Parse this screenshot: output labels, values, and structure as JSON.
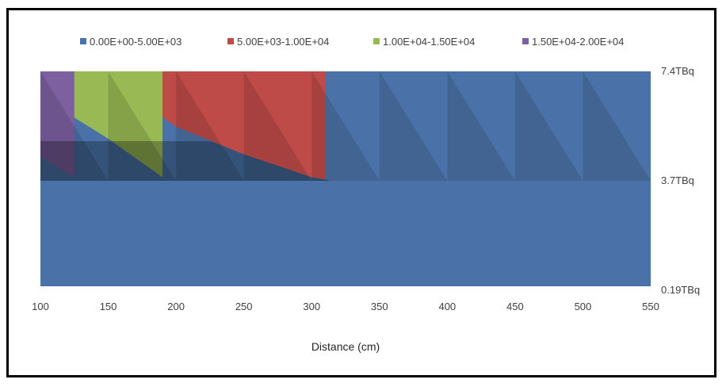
{
  "chart_data": {
    "type": "area",
    "subtype": "3d-surface-contour",
    "title": "",
    "xlabel": "Distance (cm)",
    "ylabel": "",
    "x": [
      100,
      150,
      200,
      250,
      300,
      350,
      400,
      450,
      500,
      550
    ],
    "x_tick_labels": [
      "100",
      "150",
      "200",
      "250",
      "300",
      "350",
      "400",
      "450",
      "500",
      "550"
    ],
    "series_axis_labels": [
      "0.19TBq",
      "3.7TBq",
      "7.4TBq"
    ],
    "legend_position": "top",
    "legend": [
      {
        "label": "0.00E+00-5.00E+03",
        "color": "#4a72a8"
      },
      {
        "label": "5.00E+03-1.00E+04",
        "color": "#be4b48"
      },
      {
        "label": "1.00E+04-1.50E+04",
        "color": "#98b954"
      },
      {
        "label": "1.50E+04-2.00E+04",
        "color": "#7d60a0"
      }
    ],
    "series": [
      {
        "name": "0.19TBq",
        "values": [
          1200,
          900,
          650,
          500,
          380,
          300,
          240,
          190,
          160,
          130
        ]
      },
      {
        "name": "3.7TBq",
        "values": [
          9000,
          6500,
          4700,
          3500,
          2700,
          2100,
          1700,
          1400,
          1150,
          950
        ]
      },
      {
        "name": "7.4TBq",
        "values": [
          17000,
          13500,
          9500,
          7200,
          5300,
          4300,
          3500,
          2900,
          2400,
          2000
        ]
      }
    ],
    "bands": [
      0,
      5000,
      10000,
      15000,
      20000
    ],
    "grid": false
  }
}
